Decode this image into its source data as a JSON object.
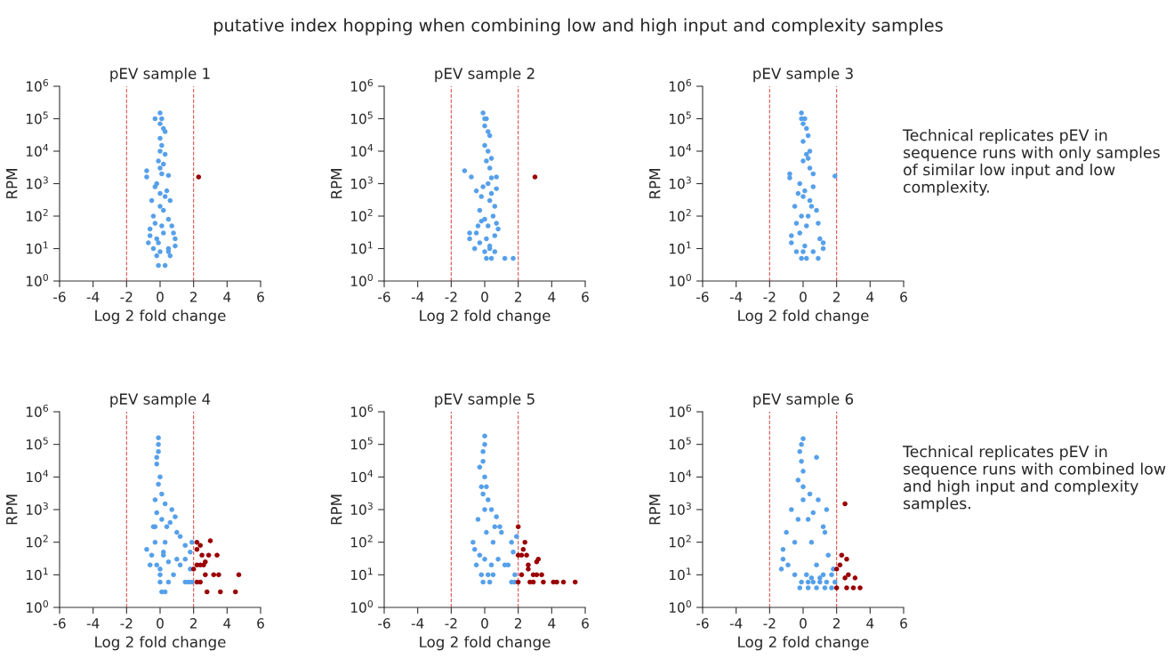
{
  "chart_data": [
    {
      "type": "other",
      "title": "putative index hopping when combining low and high input and complexity samples"
    },
    {
      "type": "scatter",
      "title": "pEV sample 1",
      "xlabel": "Log 2 fold change",
      "ylabel": "RPM",
      "log": "y",
      "marker": "circle",
      "grid": false,
      "legend": false,
      "xlim": [
        -6,
        6
      ],
      "xticks": [
        -6,
        -4,
        -2,
        0,
        2,
        4,
        6
      ],
      "ylim": [
        1,
        1000000
      ],
      "yticks": [
        {
          "value": 1,
          "label": "10$^{0}$"
        },
        {
          "value": 10,
          "label": "10$^{1}$"
        },
        {
          "value": 100,
          "label": "10$^{2}$"
        },
        {
          "value": 1000,
          "label": "10$^{3}$"
        },
        {
          "value": 10000,
          "label": "10$^{4}$"
        },
        {
          "value": 100000,
          "label": "10$^{5}$"
        },
        {
          "value": 1000000,
          "label": "10$^{6}$"
        }
      ],
      "ref_lines": [
        {
          "axis": "x",
          "value": -2,
          "color": "#d9534f",
          "line_style": "dashed"
        },
        {
          "axis": "x",
          "value": 2,
          "color": "#d9534f",
          "line_style": "dashed"
        }
      ],
      "series": [
        {
          "color": "#56a0ea",
          "x": [
            0,
            -0.3,
            0.1,
            0,
            0.2,
            0.3,
            0,
            0.1,
            0,
            0.3,
            -0.1,
            0.2,
            0,
            -0.8,
            -0.8,
            0.5,
            -0.3,
            0.4,
            -0.5,
            0.6,
            0,
            -0.4,
            0.5,
            0.7,
            -0.6,
            0.8,
            -0.6,
            0.9,
            -0.7,
            0.9,
            -0.4,
            0.5,
            0,
            0.5,
            -0.2,
            0.6,
            -0.1,
            0.3,
            0,
            0.1,
            -0.2,
            0.2,
            -0.2,
            0.1,
            -0.3,
            0.3,
            0.2,
            -0.1
          ],
          "values": [
            150000,
            100000,
            100000,
            70000,
            50000,
            40000,
            25000,
            15000,
            10000,
            8000,
            5000,
            4000,
            3000,
            2500,
            1600,
            1800,
            800,
            600,
            300,
            300,
            200,
            100,
            80,
            50,
            40,
            30,
            25,
            20,
            15,
            12,
            10,
            10,
            8,
            8,
            6,
            6,
            3,
            3,
            500,
            50,
            20,
            150,
            1000,
            2000,
            60,
            400,
            30,
            15
          ]
        },
        {
          "color": "#9b0000",
          "x": [
            2.3
          ],
          "values": [
            1600
          ]
        }
      ]
    },
    {
      "type": "scatter",
      "title": "pEV sample 2",
      "xlabel": "Log 2 fold change",
      "ylabel": "RPM",
      "log": "y",
      "marker": "circle",
      "grid": false,
      "legend": false,
      "xlim": [
        -6,
        6
      ],
      "xticks": [
        -6,
        -4,
        -2,
        0,
        2,
        4,
        6
      ],
      "ylim": [
        1,
        1000000
      ],
      "yticks": [
        {
          "value": 1,
          "label": "10$^{0}$"
        },
        {
          "value": 10,
          "label": "10$^{1}$"
        },
        {
          "value": 100,
          "label": "10$^{2}$"
        },
        {
          "value": 1000,
          "label": "10$^{3}$"
        },
        {
          "value": 10000,
          "label": "10$^{4}$"
        },
        {
          "value": 100000,
          "label": "10$^{5}$"
        },
        {
          "value": 1000000,
          "label": "10$^{6}$"
        }
      ],
      "ref_lines": [
        {
          "axis": "x",
          "value": -2,
          "color": "#d9534f",
          "line_style": "dashed"
        },
        {
          "axis": "x",
          "value": 2,
          "color": "#d9534f",
          "line_style": "dashed"
        }
      ],
      "series": [
        {
          "color": "#56a0ea",
          "x": [
            -0.1,
            0,
            0.1,
            0,
            0.2,
            0.3,
            0,
            0.2,
            0.4,
            0.1,
            0.3,
            0.4,
            -1.2,
            -0.8,
            0.7,
            0.7,
            -0.5,
            -0.2,
            0.3,
            0.6,
            -0.3,
            0.5,
            0,
            0.7,
            -0.4,
            0.8,
            -0.5,
            0.6,
            -0.9,
            -0.9,
            -0.6,
            0.3,
            0,
            0.6,
            0.1,
            0.4,
            1.2,
            1.7,
            0.2,
            -0.1,
            0.4,
            0.2,
            -0.3,
            0.1,
            0.3,
            -0.2
          ],
          "values": [
            150000,
            100000,
            100000,
            60000,
            40000,
            30000,
            15000,
            10000,
            6000,
            5000,
            3000,
            1500,
            2500,
            1600,
            1600,
            700,
            600,
            400,
            300,
            200,
            150,
            100,
            80,
            60,
            50,
            40,
            30,
            25,
            30,
            20,
            10,
            10,
            8,
            8,
            5,
            5,
            5,
            5,
            1000,
            800,
            500,
            50,
            15,
            20,
            12,
            70
          ]
        },
        {
          "color": "#9b0000",
          "x": [
            3
          ],
          "values": [
            1600
          ]
        }
      ]
    },
    {
      "type": "scatter",
      "title": "pEV sample 3",
      "xlabel": "Log 2 fold change",
      "ylabel": "RPM",
      "log": "y",
      "marker": "circle",
      "grid": false,
      "legend": false,
      "xlim": [
        -6,
        6
      ],
      "xticks": [
        -6,
        -4,
        -2,
        0,
        2,
        4,
        6
      ],
      "ylim": [
        1,
        1000000
      ],
      "yticks": [
        {
          "value": 1,
          "label": "10$^{0}$"
        },
        {
          "value": 10,
          "label": "10$^{1}$"
        },
        {
          "value": 100,
          "label": "10$^{2}$"
        },
        {
          "value": 1000,
          "label": "10$^{3}$"
        },
        {
          "value": 10000,
          "label": "10$^{4}$"
        },
        {
          "value": 100000,
          "label": "10$^{5}$"
        },
        {
          "value": 1000000,
          "label": "10$^{6}$"
        }
      ],
      "ref_lines": [
        {
          "axis": "x",
          "value": -2,
          "color": "#d9534f",
          "line_style": "dashed"
        },
        {
          "axis": "x",
          "value": 2,
          "color": "#d9534f",
          "line_style": "dashed"
        }
      ],
      "series": [
        {
          "color": "#56a0ea",
          "x": [
            -0.1,
            -0.1,
            0.1,
            0,
            0.2,
            0.3,
            0,
            0.4,
            0.2,
            0,
            0.4,
            -0.8,
            -0.8,
            0.6,
            0.6,
            -0.3,
            0.4,
            0.5,
            -0.5,
            0.8,
            0.9,
            -0.4,
            -0.7,
            -0.7,
            1,
            1.2,
            1.2,
            0.6,
            0,
            -0.4,
            -0.1,
            0.9,
            0.2,
            -0.2,
            0,
            0.3,
            0.2,
            -0.2,
            0.1,
            -0.1,
            0.3,
            0.1
          ],
          "values": [
            150000,
            100000,
            100000,
            70000,
            50000,
            30000,
            20000,
            10000,
            8000,
            5000,
            3000,
            2000,
            1500,
            2000,
            800,
            500,
            300,
            200,
            200,
            150,
            60,
            60,
            25,
            15,
            20,
            15,
            10,
            8,
            8,
            8,
            5,
            5,
            5,
            1000,
            400,
            100,
            50,
            30,
            12,
            100,
            6000,
            600
          ]
        },
        {
          "color": "#56a0ea",
          "x": [
            1.9
          ],
          "values": [
            1700
          ]
        }
      ]
    },
    {
      "type": "other",
      "annotations": [
        "Technical replicates pEV in sequence runs with only samples of similar low input and low complexity."
      ]
    },
    {
      "type": "scatter",
      "title": "pEV sample 4",
      "xlabel": "Log 2 fold change",
      "ylabel": "RPM",
      "log": "y",
      "marker": "circle",
      "grid": false,
      "legend": false,
      "xlim": [
        -6,
        6
      ],
      "xticks": [
        -6,
        -4,
        -2,
        0,
        2,
        4,
        6
      ],
      "ylim": [
        1,
        1000000
      ],
      "yticks": [
        {
          "value": 1,
          "label": "10$^{0}$"
        },
        {
          "value": 10,
          "label": "10$^{1}$"
        },
        {
          "value": 100,
          "label": "10$^{2}$"
        },
        {
          "value": 1000,
          "label": "10$^{3}$"
        },
        {
          "value": 10000,
          "label": "10$^{4}$"
        },
        {
          "value": 100000,
          "label": "10$^{5}$"
        },
        {
          "value": 1000000,
          "label": "10$^{6}$"
        }
      ],
      "ref_lines": [
        {
          "axis": "x",
          "value": -2,
          "color": "#d9534f",
          "line_style": "dashed"
        },
        {
          "axis": "x",
          "value": 2,
          "color": "#d9534f",
          "line_style": "dashed"
        }
      ],
      "series": [
        {
          "color": "#56a0ea",
          "x": [
            -0.1,
            -0.1,
            -0.1,
            -0.2,
            -0.2,
            0,
            -0.1,
            0.1,
            -0.3,
            0.3,
            -0.2,
            0.7,
            0.9,
            1,
            1.2,
            0.6,
            -0.3,
            0.4,
            1.5,
            1.8,
            1.9,
            1.5,
            1.2,
            1.8,
            -0.8,
            -0.5,
            0.2,
            0.5,
            1,
            -0.2,
            0,
            0.8,
            1.5,
            1.7,
            1.9,
            0.1,
            0.3,
            0,
            0.5,
            -0.4,
            -0.3,
            0.3,
            0.2,
            -0.6,
            0,
            0.1
          ],
          "values": [
            160000,
            100000,
            60000,
            40000,
            25000,
            10000,
            6000,
            3000,
            2000,
            1500,
            800,
            1000,
            600,
            200,
            150,
            400,
            300,
            300,
            80,
            50,
            100,
            30,
            20,
            15,
            60,
            40,
            40,
            25,
            30,
            20,
            10,
            10,
            6,
            6,
            6,
            3,
            3,
            6,
            6,
            300,
            100,
            100,
            50,
            20,
            15,
            500
          ]
        },
        {
          "color": "#9b0000",
          "x": [
            2.2,
            2.4,
            3,
            2.2,
            2.5,
            2.6,
            2.9,
            3.4,
            2.2,
            2.4,
            2.7,
            2,
            2.7,
            3.2,
            3.5,
            2.2,
            2.4,
            2.8,
            3.6,
            4.5,
            4.7
          ],
          "values": [
            100,
            80,
            110,
            60,
            40,
            20,
            40,
            40,
            20,
            20,
            25,
            15,
            10,
            10,
            10,
            6,
            6,
            3,
            3,
            3,
            10
          ]
        }
      ]
    },
    {
      "type": "scatter",
      "title": "pEV sample 5",
      "xlabel": "Log 2 fold change",
      "ylabel": "RPM",
      "log": "y",
      "marker": "circle",
      "grid": false,
      "legend": false,
      "xlim": [
        -6,
        6
      ],
      "xticks": [
        -6,
        -4,
        -2,
        0,
        2,
        4,
        6
      ],
      "ylim": [
        1,
        1000000
      ],
      "yticks": [
        {
          "value": 1,
          "label": "10$^{0}$"
        },
        {
          "value": 10,
          "label": "10$^{1}$"
        },
        {
          "value": 100,
          "label": "10$^{2}$"
        },
        {
          "value": 1000,
          "label": "10$^{3}$"
        },
        {
          "value": 10000,
          "label": "10$^{4}$"
        },
        {
          "value": 100000,
          "label": "10$^{5}$"
        },
        {
          "value": 1000000,
          "label": "10$^{6}$"
        }
      ],
      "ref_lines": [
        {
          "axis": "x",
          "value": -2,
          "color": "#d9534f",
          "line_style": "dashed"
        },
        {
          "axis": "x",
          "value": 2,
          "color": "#d9534f",
          "line_style": "dashed"
        }
      ],
      "series": [
        {
          "color": "#56a0ea",
          "x": [
            0,
            0,
            -0.1,
            -0.1,
            -0.3,
            0,
            0.1,
            -0.1,
            0.2,
            0.4,
            0.7,
            0.9,
            -0.4,
            0.6,
            1,
            -0.7,
            0.5,
            -0.6,
            1.6,
            1.9,
            1.7,
            1.4,
            1.8,
            1.6,
            1.8,
            -0.3,
            0,
            0.4,
            0.8,
            1.2,
            -0.5,
            -0.2,
            0.2,
            0.5,
            -0.1,
            0.3,
            0,
            0.1,
            -0.2
          ],
          "values": [
            180000,
            100000,
            60000,
            30000,
            20000,
            10000,
            5000,
            3000,
            2000,
            1000,
            600,
            300,
            500,
            300,
            200,
            100,
            100,
            60,
            100,
            150,
            50,
            20,
            10,
            6,
            6,
            40,
            30,
            20,
            30,
            20,
            20,
            10,
            10,
            10,
            6,
            6,
            1000,
            200,
            5000
          ]
        },
        {
          "color": "#9b0000",
          "x": [
            2,
            2.4,
            2.3,
            2.2,
            2,
            2.5,
            2.6,
            2.6,
            3.2,
            3.1,
            2.2,
            2.9,
            3.1,
            3.4,
            2,
            2.7,
            2.9,
            3.5,
            4.1,
            4.3,
            4.7,
            5.4
          ],
          "values": [
            300,
            100,
            60,
            40,
            40,
            40,
            20,
            15,
            30,
            25,
            10,
            10,
            10,
            10,
            6,
            6,
            6,
            6,
            6,
            6,
            6,
            6
          ]
        }
      ]
    },
    {
      "type": "scatter",
      "title": "pEV sample 6",
      "xlabel": "Log 2 fold change",
      "ylabel": "RPM",
      "log": "y",
      "marker": "circle",
      "grid": false,
      "legend": false,
      "xlim": [
        -6,
        6
      ],
      "xticks": [
        -6,
        -4,
        -2,
        0,
        2,
        4,
        6
      ],
      "ylim": [
        1,
        1000000
      ],
      "yticks": [
        {
          "value": 1,
          "label": "10$^{0}$"
        },
        {
          "value": 10,
          "label": "10$^{1}$"
        },
        {
          "value": 100,
          "label": "10$^{2}$"
        },
        {
          "value": 1000,
          "label": "10$^{3}$"
        },
        {
          "value": 10000,
          "label": "10$^{4}$"
        },
        {
          "value": 100000,
          "label": "10$^{5}$"
        },
        {
          "value": 1000000,
          "label": "10$^{6}$"
        }
      ],
      "ref_lines": [
        {
          "axis": "x",
          "value": -2,
          "color": "#d9534f",
          "line_style": "dashed"
        },
        {
          "axis": "x",
          "value": 2,
          "color": "#d9534f",
          "line_style": "dashed"
        }
      ],
      "series": [
        {
          "color": "#56a0ea",
          "x": [
            0,
            -0.1,
            -0.2,
            -0.1,
            0.8,
            0,
            -0.3,
            0,
            0.4,
            0.9,
            -0.7,
            1.4,
            0.6,
            -0.3,
            1.2,
            -1,
            1.3,
            -1.2,
            -1.2,
            -1.3,
            -0.9,
            0.8,
            1.5,
            1.8,
            1.7,
            1.2,
            -0.5,
            0.2,
            0.5,
            1,
            -0.1,
            0.3,
            0.6,
            1,
            1.4,
            1.9,
            -0.2,
            0.3,
            0.8,
            1.3,
            1.7,
            0,
            0.3,
            -0.5,
            0.5
          ],
          "values": [
            150000,
            100000,
            60000,
            30000,
            40000,
            15000,
            8000,
            5000,
            3000,
            2000,
            1000,
            1000,
            800,
            500,
            300,
            200,
            200,
            60,
            30,
            15,
            20,
            20,
            40,
            15,
            10,
            10,
            10,
            10,
            8,
            8,
            6,
            6,
            6,
            6,
            6,
            6,
            4,
            4,
            4,
            4,
            4,
            2000,
            500,
            100,
            100
          ]
        },
        {
          "color": "#9b0000",
          "x": [
            2.5,
            2.3,
            2.6,
            2.2,
            2,
            2.7,
            2.5,
            3.1,
            2,
            2.6,
            3,
            3.4
          ],
          "values": [
            1500,
            40,
            30,
            20,
            15,
            10,
            8,
            8,
            4,
            4,
            4,
            4
          ]
        }
      ]
    },
    {
      "type": "other",
      "annotations": [
        "Technical replicates pEV in sequence runs with combined low and high input and complexity samples."
      ]
    }
  ]
}
